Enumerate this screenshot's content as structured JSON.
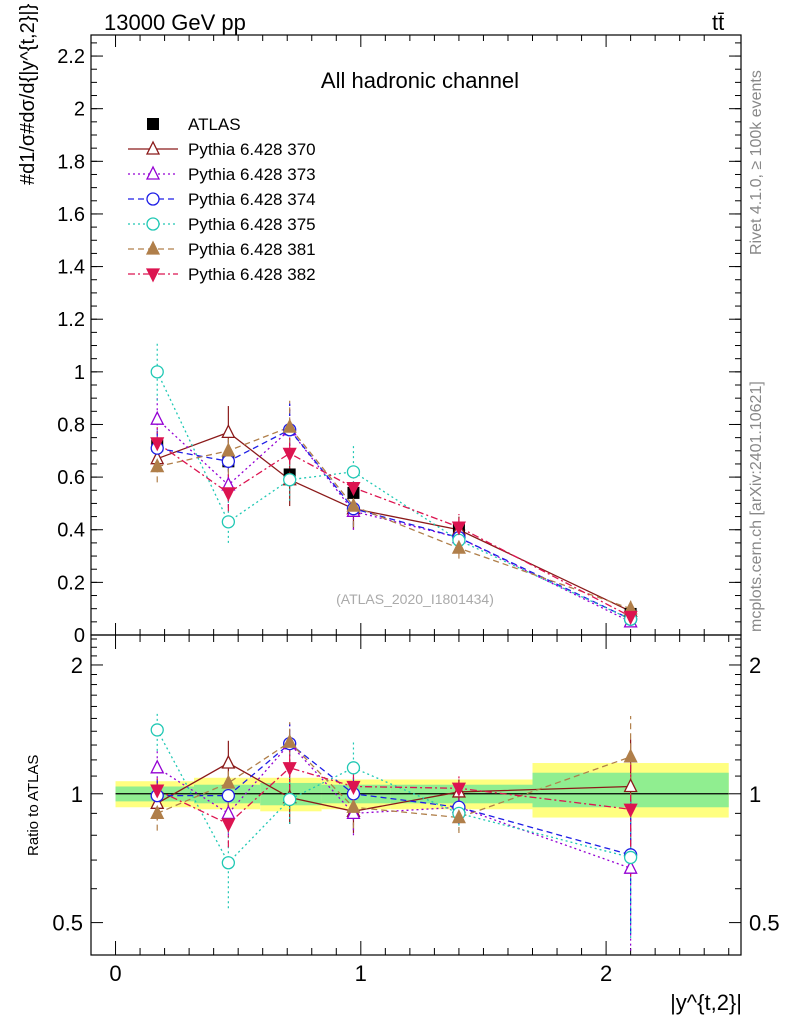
{
  "header": {
    "energy_label": "13000 GeV pp",
    "process_label": "tt̄",
    "side_rivet": "Rivet 4.1.0, ≥ 100k events",
    "side_mcplots": "mcplots.cern.ch [arXiv:2401.10621]"
  },
  "chart_data": [
    {
      "type": "scatter",
      "panel": "main",
      "title": "All hadronic channel",
      "ylabel": "#d1/σ#dσ/d{|y^{t,2}|}",
      "analysis_id": "(ATLAS_2020_I1801434)",
      "x": [
        0.17,
        0.46,
        0.71,
        0.97,
        1.4,
        2.1
      ],
      "ylim": [
        0,
        2.28
      ],
      "yticks": [
        "0",
        "0.2",
        "0.4",
        "0.6",
        "0.8",
        "1",
        "1.2",
        "1.4",
        "1.6",
        "1.8",
        "2",
        "2.2"
      ],
      "series": [
        {
          "name": "ATLAS",
          "color": "#000000",
          "marker": "square-filled",
          "dash": "none",
          "values": [
            0.72,
            0.66,
            0.61,
            0.54,
            0.4,
            0.08
          ]
        },
        {
          "name": "Pythia 6.428 370",
          "color": "#8b1a1a",
          "marker": "triangle-up-open",
          "dash": "solid",
          "values": [
            0.67,
            0.77,
            0.59,
            0.48,
            0.4,
            0.09
          ],
          "err": [
            0.05,
            0.1,
            0.1,
            0.08,
            0.05,
            0.02
          ]
        },
        {
          "name": "Pythia 6.428 373",
          "color": "#9400d3",
          "marker": "triangle-up-open",
          "dash": "dotted",
          "values": [
            0.82,
            0.57,
            0.78,
            0.47,
            0.37,
            0.05
          ],
          "err": [
            0.08,
            0.08,
            0.1,
            0.07,
            0.05,
            0.02
          ]
        },
        {
          "name": "Pythia 6.428 374",
          "color": "#1e1ee6",
          "marker": "circle-open",
          "dash": "dashed",
          "values": [
            0.71,
            0.66,
            0.78,
            0.48,
            0.37,
            0.06
          ],
          "err": [
            0.07,
            0.08,
            0.1,
            0.07,
            0.05,
            0.02
          ]
        },
        {
          "name": "Pythia 6.428 375",
          "color": "#20c8b4",
          "marker": "circle-open",
          "dash": "dotted",
          "values": [
            1.0,
            0.43,
            0.59,
            0.62,
            0.36,
            0.06
          ],
          "err": [
            0.11,
            0.08,
            0.08,
            0.1,
            0.05,
            0.02
          ]
        },
        {
          "name": "Pythia 6.428 381",
          "color": "#b07f4a",
          "marker": "triangle-up-filled",
          "dash": "dashed",
          "values": [
            0.64,
            0.7,
            0.79,
            0.49,
            0.33,
            0.1
          ],
          "err": [
            0.06,
            0.09,
            0.1,
            0.08,
            0.04,
            0.03
          ]
        },
        {
          "name": "Pythia 6.428 382",
          "color": "#dc1450",
          "marker": "triangle-down-filled",
          "dash": "dashdot",
          "values": [
            0.73,
            0.54,
            0.69,
            0.56,
            0.41,
            0.07
          ],
          "err": [
            0.06,
            0.07,
            0.1,
            0.08,
            0.05,
            0.02
          ]
        }
      ]
    },
    {
      "type": "scatter",
      "panel": "ratio",
      "ylabel": "Ratio to ATLAS",
      "xlabel": "|y^{t,2}|",
      "x": [
        0.17,
        0.46,
        0.71,
        0.97,
        1.4,
        2.1
      ],
      "ylim": [
        0.42,
        2.35
      ],
      "ytick_values": [
        0.5,
        1,
        2
      ],
      "ytick_labels": [
        "0.5",
        "1",
        "2"
      ],
      "xlim": [
        -0.1,
        2.55
      ],
      "xtick_values": [
        0,
        1,
        2
      ],
      "xtick_labels": [
        "0",
        "1",
        "2"
      ],
      "bands": [
        {
          "x0": 0.0,
          "x1": 0.32,
          "inner": [
            0.96,
            1.04
          ],
          "outer": [
            0.93,
            1.07
          ]
        },
        {
          "x0": 0.32,
          "x1": 0.59,
          "inner": [
            0.95,
            1.05
          ],
          "outer": [
            0.92,
            1.09
          ]
        },
        {
          "x0": 0.59,
          "x1": 0.84,
          "inner": [
            0.94,
            1.06
          ],
          "outer": [
            0.91,
            1.09
          ]
        },
        {
          "x0": 0.84,
          "x1": 1.12,
          "inner": [
            0.95,
            1.05
          ],
          "outer": [
            0.92,
            1.08
          ]
        },
        {
          "x0": 1.12,
          "x1": 1.7,
          "inner": [
            0.95,
            1.05
          ],
          "outer": [
            0.92,
            1.08
          ]
        },
        {
          "x0": 1.7,
          "x1": 2.5,
          "inner": [
            0.93,
            1.12
          ],
          "outer": [
            0.88,
            1.18
          ]
        }
      ],
      "series": [
        {
          "name": "Pythia 6.428 370",
          "values": [
            0.95,
            1.18,
            0.98,
            0.91,
            1.01,
            1.04
          ],
          "err": [
            0.08,
            0.15,
            0.13,
            0.1,
            0.07,
            0.3
          ]
        },
        {
          "name": "Pythia 6.428 373",
          "values": [
            1.15,
            0.9,
            1.31,
            0.9,
            0.93,
            0.67
          ],
          "err": [
            0.12,
            0.1,
            0.15,
            0.1,
            0.08,
            0.25
          ]
        },
        {
          "name": "Pythia 6.428 374",
          "values": [
            0.99,
            0.99,
            1.31,
            1.0,
            0.93,
            0.72
          ],
          "err": [
            0.1,
            0.11,
            0.15,
            0.1,
            0.08,
            0.25
          ]
        },
        {
          "name": "Pythia 6.428 375",
          "values": [
            1.41,
            0.69,
            0.97,
            1.15,
            0.9,
            0.71
          ],
          "err": [
            0.15,
            0.15,
            0.12,
            0.18,
            0.08,
            0.25
          ]
        },
        {
          "name": "Pythia 6.428 381",
          "values": [
            0.9,
            1.06,
            1.32,
            0.93,
            0.88,
            1.22
          ],
          "err": [
            0.08,
            0.13,
            0.15,
            0.1,
            0.07,
            0.3
          ]
        },
        {
          "name": "Pythia 6.428 382",
          "values": [
            1.02,
            0.85,
            1.15,
            1.04,
            1.03,
            0.92
          ],
          "err": [
            0.08,
            0.1,
            0.14,
            0.12,
            0.08,
            0.28
          ]
        }
      ]
    }
  ]
}
